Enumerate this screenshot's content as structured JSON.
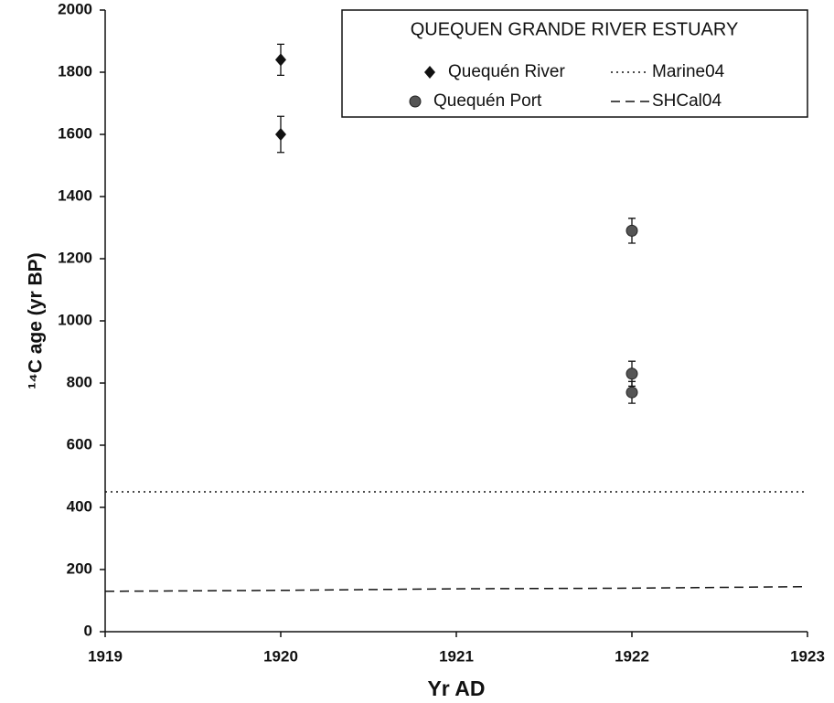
{
  "chart_data": {
    "type": "scatter",
    "legend_title": "QUEQUEN GRANDE RIVER ESTUARY",
    "xlabel": "Yr AD",
    "ylabel": "¹⁴C age (yr BP)",
    "xlim": [
      1919,
      1923
    ],
    "xticks": [
      1919,
      1920,
      1921,
      1922,
      1923
    ],
    "ylim": [
      0,
      2000
    ],
    "yticks": [
      0,
      200,
      400,
      600,
      800,
      1000,
      1200,
      1400,
      1600,
      1800,
      2000
    ],
    "legend": "upper right",
    "series": [
      {
        "name": "Quequén River",
        "type": "scatter",
        "marker": "diamond",
        "color": "#111111",
        "x": [
          1920,
          1920
        ],
        "values": [
          1840,
          1600
        ],
        "errors": [
          50,
          58
        ]
      },
      {
        "name": "Quequén Port",
        "type": "scatter",
        "marker": "circle",
        "color": "#555555",
        "x": [
          1922,
          1922,
          1922
        ],
        "values": [
          1290,
          830,
          770
        ],
        "errors": [
          40,
          40,
          35
        ]
      },
      {
        "name": "Marine04",
        "type": "line",
        "dash": "2,4",
        "color": "#111111",
        "x": [
          1919,
          1923
        ],
        "values": [
          450,
          450
        ]
      },
      {
        "name": "SHCal04",
        "type": "line",
        "dash": "10,6",
        "color": "#111111",
        "x": [
          1919,
          1920,
          1921,
          1922,
          1923
        ],
        "values": [
          130,
          133,
          138,
          140,
          145
        ]
      }
    ]
  }
}
